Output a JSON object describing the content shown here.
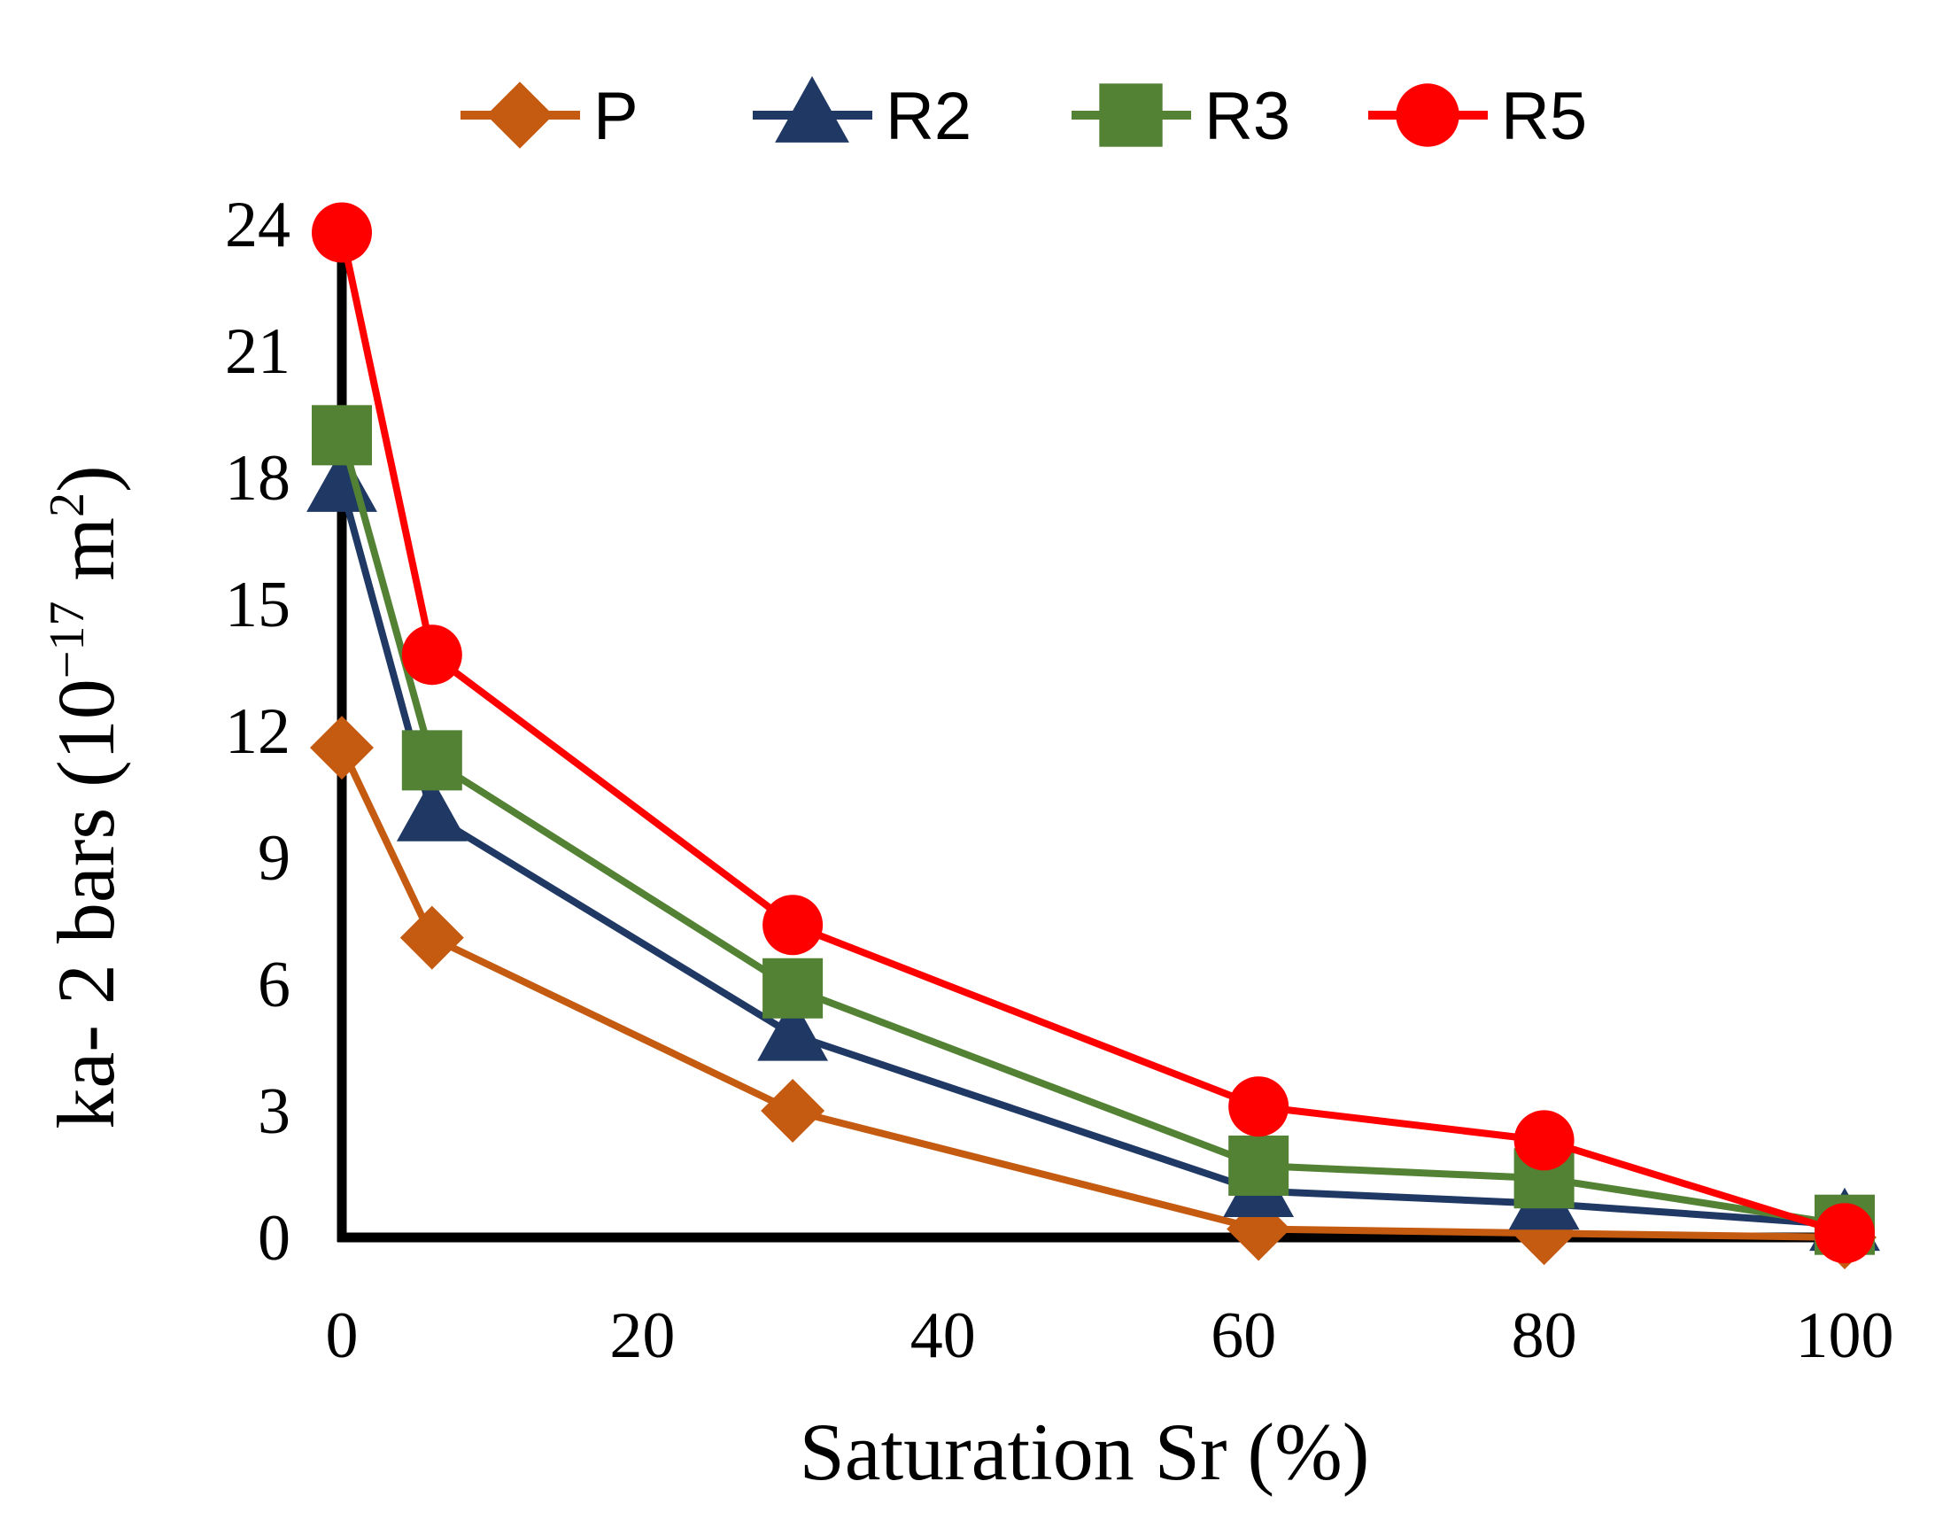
{
  "chart_data": {
    "type": "line",
    "xlabel": "Saturation Sr (%)",
    "ylabel": "ka- 2 bars (10",
    "ylabel_exponent": "−17",
    "ylabel_unit": " m",
    "ylabel_unit_exponent": "2",
    "ylabel_close": ")",
    "xlim": [
      0,
      100
    ],
    "ylim": [
      0,
      24
    ],
    "xticks": [
      "0",
      "20",
      "40",
      "60",
      "80",
      "100"
    ],
    "yticks": [
      "0",
      "3",
      "6",
      "9",
      "12",
      "15",
      "18",
      "21",
      "24"
    ],
    "grid": false,
    "legend_position": "top",
    "x": [
      0,
      6,
      30,
      61,
      80,
      100
    ],
    "series": [
      {
        "name": "P",
        "color": "#c55a11",
        "marker": "diamond",
        "values": [
          11.6,
          7.1,
          3.0,
          0.2,
          0.1,
          0.0
        ]
      },
      {
        "name": "R2",
        "color": "#1f3864",
        "marker": "triangle",
        "values": [
          17.8,
          10.0,
          4.8,
          1.1,
          0.8,
          0.3
        ]
      },
      {
        "name": "R3",
        "color": "#548235",
        "marker": "square",
        "values": [
          19.0,
          11.3,
          5.9,
          1.7,
          1.4,
          0.3
        ]
      },
      {
        "name": "R5",
        "color": "#ff0000",
        "marker": "circle",
        "values": [
          23.8,
          13.8,
          7.4,
          3.1,
          2.3,
          0.1
        ]
      }
    ]
  }
}
